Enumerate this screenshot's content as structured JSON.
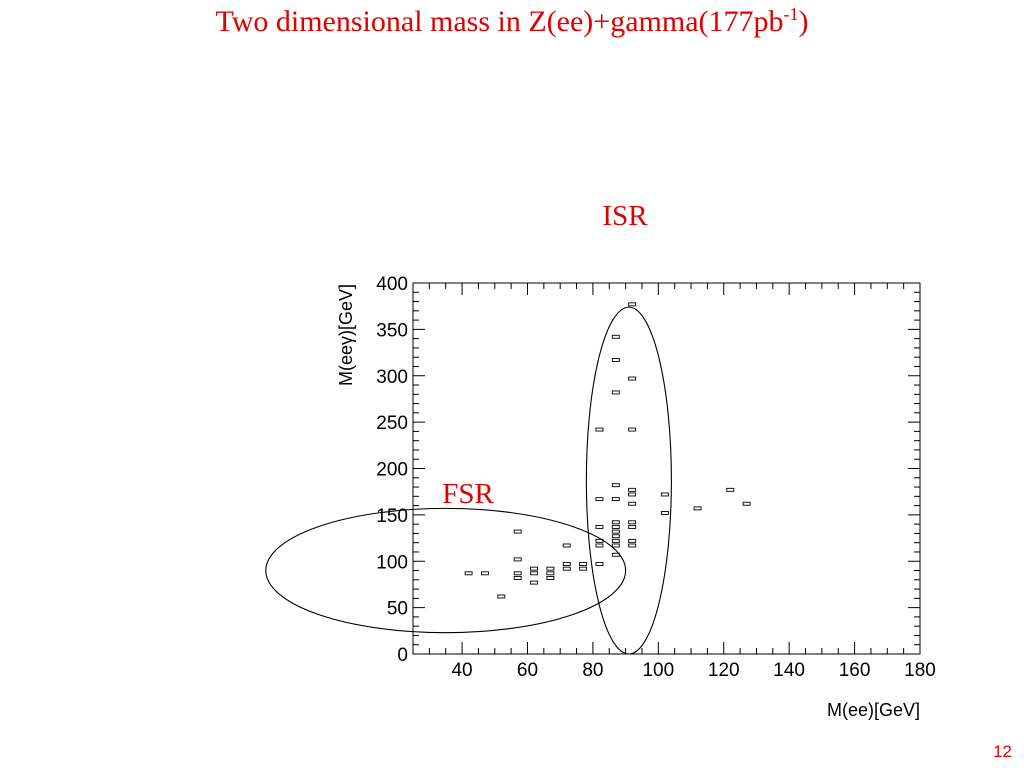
{
  "slide": {
    "title_main": "Two dimensional  mass in Z(ee)+gamma(177pb",
    "title_sup": "-1",
    "title_close": ")",
    "page_number": "12"
  },
  "annotations": {
    "isr_label": "ISR",
    "fsr_label": "FSR",
    "isr_ellipse": {
      "x_center": 91,
      "y_center": 187,
      "x_half": 13,
      "y_half": 187
    },
    "fsr_ellipse": {
      "x_center": 35,
      "y_center": 90,
      "x_half": 55,
      "y_half": 67
    },
    "color": "#e00000"
  },
  "chart_data": {
    "type": "heatmap",
    "title": "",
    "xlabel": "M(ee)[GeV]",
    "ylabel": "M(eeγ)[GeV]",
    "xlim": [
      25,
      180
    ],
    "ylim": [
      0,
      400
    ],
    "x_ticks": [
      40,
      60,
      80,
      100,
      120,
      140,
      160,
      180
    ],
    "y_ticks": [
      0,
      50,
      100,
      150,
      200,
      250,
      300,
      350,
      400
    ],
    "bin_width_x": 5,
    "bin_width_y": 5,
    "grid": false,
    "bins": [
      {
        "x": 42,
        "y": 87
      },
      {
        "x": 47,
        "y": 87
      },
      {
        "x": 52,
        "y": 62
      },
      {
        "x": 57,
        "y": 132
      },
      {
        "x": 57,
        "y": 102
      },
      {
        "x": 57,
        "y": 87
      },
      {
        "x": 57,
        "y": 82
      },
      {
        "x": 62,
        "y": 92
      },
      {
        "x": 62,
        "y": 87
      },
      {
        "x": 62,
        "y": 77
      },
      {
        "x": 67,
        "y": 92
      },
      {
        "x": 67,
        "y": 87
      },
      {
        "x": 67,
        "y": 82
      },
      {
        "x": 72,
        "y": 117
      },
      {
        "x": 72,
        "y": 97
      },
      {
        "x": 72,
        "y": 92
      },
      {
        "x": 77,
        "y": 97
      },
      {
        "x": 77,
        "y": 92
      },
      {
        "x": 82,
        "y": 242
      },
      {
        "x": 82,
        "y": 167
      },
      {
        "x": 82,
        "y": 137
      },
      {
        "x": 82,
        "y": 122
      },
      {
        "x": 82,
        "y": 117
      },
      {
        "x": 82,
        "y": 97
      },
      {
        "x": 87,
        "y": 342
      },
      {
        "x": 87,
        "y": 317
      },
      {
        "x": 87,
        "y": 282
      },
      {
        "x": 87,
        "y": 182
      },
      {
        "x": 87,
        "y": 167
      },
      {
        "x": 87,
        "y": 142
      },
      {
        "x": 87,
        "y": 137
      },
      {
        "x": 87,
        "y": 132
      },
      {
        "x": 87,
        "y": 127
      },
      {
        "x": 87,
        "y": 122
      },
      {
        "x": 87,
        "y": 117
      },
      {
        "x": 87,
        "y": 107
      },
      {
        "x": 92,
        "y": 377
      },
      {
        "x": 92,
        "y": 297
      },
      {
        "x": 92,
        "y": 242
      },
      {
        "x": 92,
        "y": 177
      },
      {
        "x": 92,
        "y": 172
      },
      {
        "x": 92,
        "y": 162
      },
      {
        "x": 92,
        "y": 142
      },
      {
        "x": 92,
        "y": 137
      },
      {
        "x": 92,
        "y": 122
      },
      {
        "x": 92,
        "y": 117
      },
      {
        "x": 102,
        "y": 172
      },
      {
        "x": 102,
        "y": 152
      },
      {
        "x": 112,
        "y": 157
      },
      {
        "x": 122,
        "y": 177
      },
      {
        "x": 127,
        "y": 162
      }
    ]
  }
}
